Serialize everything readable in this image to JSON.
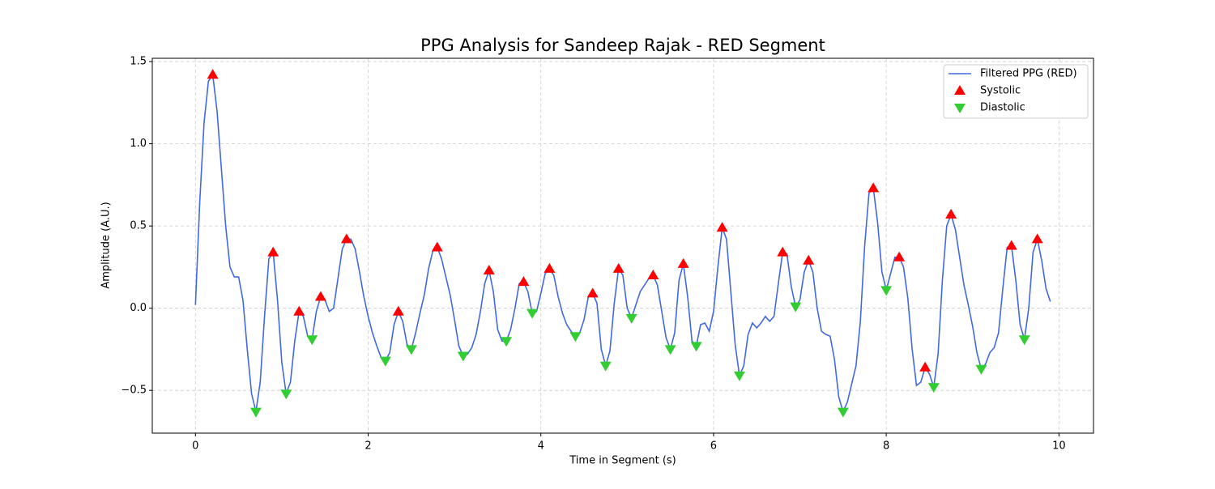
{
  "chart_data": {
    "type": "line",
    "title": "PPG Analysis for Sandeep Rajak - RED Segment",
    "xlabel": "Time in Segment (s)",
    "ylabel": "Amplitude (A.U.)",
    "xlim": [
      -0.5,
      10.4
    ],
    "ylim": [
      -0.76,
      1.52
    ],
    "xticks": [
      0,
      2,
      4,
      6,
      8,
      10
    ],
    "yticks": [
      {
        "value": -0.5,
        "label": "−0.5"
      },
      {
        "value": 0,
        "label": "0.0"
      },
      0.5,
      {
        "value": 1,
        "label": "1.0"
      },
      1.5
    ],
    "grid": true,
    "legend": "upper right",
    "series": [
      {
        "name": "Filtered PPG (RED)",
        "color": "#4169e1",
        "type": "line",
        "x": [
          0,
          0.05,
          0.1,
          0.15,
          0.2,
          0.25,
          0.3,
          0.35,
          0.4,
          0.45,
          0.5,
          0.55,
          0.6,
          0.65,
          0.7,
          0.75,
          0.8,
          0.85,
          0.9,
          0.95,
          1,
          1.05,
          1.1,
          1.15,
          1.2,
          1.25,
          1.3,
          1.35,
          1.4,
          1.45,
          1.5,
          1.55,
          1.6,
          1.65,
          1.7,
          1.75,
          1.8,
          1.85,
          1.9,
          1.95,
          2,
          2.05,
          2.1,
          2.15,
          2.2,
          2.25,
          2.3,
          2.35,
          2.4,
          2.45,
          2.5,
          2.55,
          2.6,
          2.65,
          2.7,
          2.75,
          2.8,
          2.85,
          2.9,
          2.95,
          3,
          3.05,
          3.1,
          3.15,
          3.2,
          3.25,
          3.3,
          3.35,
          3.4,
          3.45,
          3.5,
          3.55,
          3.6,
          3.65,
          3.7,
          3.75,
          3.8,
          3.85,
          3.9,
          3.95,
          4,
          4.05,
          4.1,
          4.15,
          4.2,
          4.25,
          4.3,
          4.35,
          4.4,
          4.45,
          4.5,
          4.55,
          4.6,
          4.65,
          4.7,
          4.75,
          4.8,
          4.85,
          4.9,
          4.95,
          5,
          5.05,
          5.1,
          5.15,
          5.2,
          5.25,
          5.3,
          5.35,
          5.4,
          5.45,
          5.5,
          5.55,
          5.6,
          5.65,
          5.7,
          5.75,
          5.8,
          5.85,
          5.9,
          5.95,
          6,
          6.05,
          6.1,
          6.15,
          6.2,
          6.25,
          6.3,
          6.35,
          6.4,
          6.45,
          6.5,
          6.55,
          6.6,
          6.65,
          6.7,
          6.75,
          6.8,
          6.85,
          6.9,
          6.95,
          7,
          7.05,
          7.1,
          7.15,
          7.2,
          7.25,
          7.3,
          7.35,
          7.4,
          7.45,
          7.5,
          7.55,
          7.6,
          7.65,
          7.7,
          7.75,
          7.8,
          7.85,
          7.9,
          7.95,
          8,
          8.05,
          8.1,
          8.15,
          8.2,
          8.25,
          8.3,
          8.35,
          8.4,
          8.45,
          8.5,
          8.55,
          8.6,
          8.65,
          8.7,
          8.75,
          8.8,
          8.85,
          8.9,
          8.95,
          9,
          9.05,
          9.1,
          9.15,
          9.2,
          9.25,
          9.3,
          9.35,
          9.4,
          9.45,
          9.5,
          9.55,
          9.6,
          9.65,
          9.7,
          9.75,
          9.8,
          9.85,
          9.9
        ],
        "values": [
          0.02,
          0.65,
          1.13,
          1.38,
          1.42,
          1.2,
          0.85,
          0.5,
          0.25,
          0.19,
          0.19,
          0.05,
          -0.25,
          -0.52,
          -0.63,
          -0.45,
          -0.05,
          0.3,
          0.34,
          0.05,
          -0.33,
          -0.52,
          -0.45,
          -0.2,
          -0.02,
          -0.05,
          -0.17,
          -0.19,
          -0.02,
          0.07,
          0.05,
          -0.02,
          0,
          0.18,
          0.36,
          0.42,
          0.42,
          0.36,
          0.22,
          0.07,
          -0.05,
          -0.15,
          -0.23,
          -0.3,
          -0.32,
          -0.27,
          -0.1,
          -0.02,
          -0.08,
          -0.22,
          -0.25,
          -0.15,
          -0.03,
          0.08,
          0.24,
          0.35,
          0.37,
          0.3,
          0.19,
          0.08,
          -0.07,
          -0.23,
          -0.29,
          -0.28,
          -0.24,
          -0.16,
          -0.02,
          0.15,
          0.23,
          0.1,
          -0.13,
          -0.2,
          -0.2,
          -0.13,
          0,
          0.15,
          0.16,
          0.1,
          -0.03,
          -0.02,
          0.09,
          0.21,
          0.24,
          0.2,
          0.07,
          -0.03,
          -0.1,
          -0.14,
          -0.17,
          -0.15,
          -0.07,
          0.07,
          0.09,
          0.03,
          -0.25,
          -0.35,
          -0.26,
          0.03,
          0.24,
          0.2,
          0,
          -0.06,
          0.02,
          0.1,
          0.14,
          0.18,
          0.2,
          0.14,
          -0.02,
          -0.18,
          -0.25,
          -0.15,
          0.17,
          0.27,
          0.07,
          -0.2,
          -0.23,
          -0.1,
          -0.09,
          -0.14,
          -0.02,
          0.25,
          0.49,
          0.42,
          0.1,
          -0.22,
          -0.41,
          -0.35,
          -0.16,
          -0.09,
          -0.12,
          -0.09,
          -0.05,
          -0.08,
          -0.05,
          0.15,
          0.34,
          0.33,
          0.13,
          0.01,
          0.05,
          0.22,
          0.29,
          0.22,
          0,
          -0.14,
          -0.16,
          -0.17,
          -0.31,
          -0.54,
          -0.63,
          -0.57,
          -0.46,
          -0.35,
          -0.08,
          0.38,
          0.7,
          0.73,
          0.52,
          0.22,
          0.11,
          0.21,
          0.31,
          0.31,
          0.25,
          0.06,
          -0.25,
          -0.47,
          -0.45,
          -0.36,
          -0.4,
          -0.48,
          -0.28,
          0.17,
          0.5,
          0.57,
          0.48,
          0.31,
          0.14,
          0.02,
          -0.11,
          -0.27,
          -0.37,
          -0.34,
          -0.27,
          -0.24,
          -0.15,
          0.12,
          0.37,
          0.38,
          0.17,
          -0.1,
          -0.19,
          0,
          0.34,
          0.42,
          0.29,
          0.12,
          0.04
        ]
      },
      {
        "name": "Systolic",
        "color": "#ff0000",
        "type": "scatter",
        "marker": "up",
        "x": [
          0.2,
          0.9,
          1.2,
          1.45,
          1.75,
          2.35,
          2.8,
          3.4,
          3.8,
          4.1,
          4.6,
          4.9,
          5.3,
          5.65,
          6.1,
          6.8,
          7.1,
          7.85,
          8.15,
          8.45,
          8.75,
          9.45,
          9.75
        ],
        "values": [
          1.42,
          0.34,
          -0.02,
          0.07,
          0.42,
          -0.02,
          0.37,
          0.23,
          0.16,
          0.24,
          0.09,
          0.24,
          0.2,
          0.27,
          0.49,
          0.34,
          0.29,
          0.73,
          0.31,
          -0.36,
          0.57,
          0.38,
          0.42
        ]
      },
      {
        "name": "Diastolic",
        "color": "#32cd32",
        "type": "scatter",
        "marker": "down",
        "x": [
          0.7,
          1.05,
          1.35,
          2.2,
          2.5,
          3.1,
          3.6,
          3.9,
          4.4,
          4.75,
          5.05,
          5.5,
          5.8,
          6.3,
          6.95,
          7.5,
          8,
          8.55,
          9.1,
          9.6
        ],
        "values": [
          -0.63,
          -0.52,
          -0.19,
          -0.32,
          -0.25,
          -0.29,
          -0.2,
          -0.03,
          -0.17,
          -0.35,
          -0.06,
          -0.25,
          -0.23,
          -0.41,
          0.01,
          -0.63,
          0.11,
          -0.48,
          -0.37,
          -0.19
        ]
      }
    ]
  }
}
